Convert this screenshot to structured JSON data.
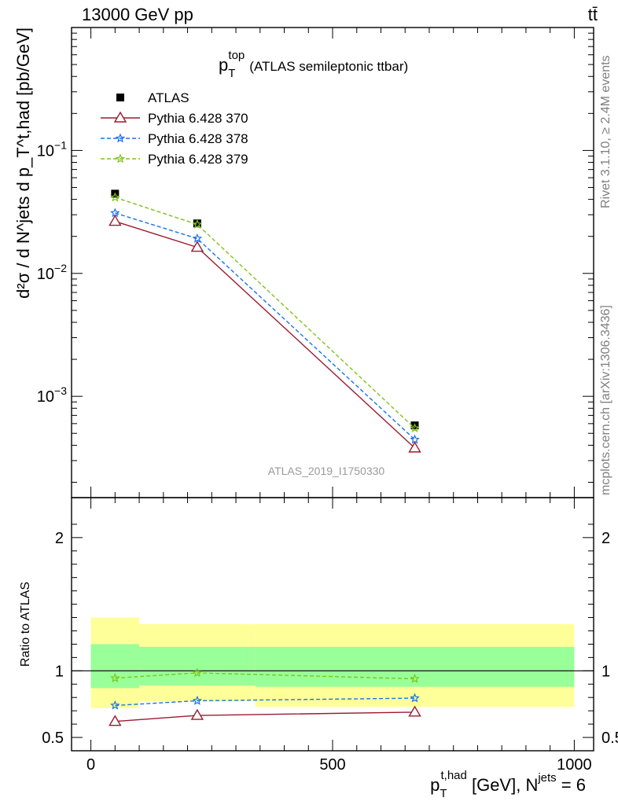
{
  "header": {
    "left": "13000 GeV pp",
    "right": "tt̄"
  },
  "side": {
    "rivet": "Rivet 3.1.10, ≥ 2.4M events",
    "mcplots": "mcplots.cern.ch [arXiv:1306.3436]"
  },
  "chart_data": [
    {
      "type": "line",
      "panel": "main",
      "title_main": "p",
      "title_sub": "T",
      "title_sup": "top",
      "title_rest": "(ATLAS semileptonic ttbar)",
      "analysis_tag": "ATLAS_2019_I1750330",
      "ylabel": "d²σ / d N^jets d p_T^t,had [pb/GeV]",
      "yscale": "log",
      "ylim": [
        0.00015,
        1.0
      ],
      "xlim": [
        -40,
        1040
      ],
      "yticks": [
        {
          "value": 0.1,
          "base": "10",
          "exp": "−1"
        },
        {
          "value": 0.01,
          "base": "10",
          "exp": "−2"
        },
        {
          "value": 0.001,
          "base": "10",
          "exp": "−3"
        }
      ],
      "x": [
        50,
        220,
        670
      ],
      "series": [
        {
          "name": "ATLAS",
          "color": "#000000",
          "marker": "square",
          "line": "none",
          "values": [
            0.0445,
            0.0255,
            0.00058
          ]
        },
        {
          "name": "Pythia 6.428 370",
          "color": "#9b1b30",
          "marker": "triangle",
          "line": "solid",
          "values": [
            0.0265,
            0.0163,
            0.00038
          ]
        },
        {
          "name": "Pythia 6.428 378",
          "color": "#1a73e8",
          "marker": "star",
          "line": "dashed",
          "values": [
            0.031,
            0.0192,
            0.000445
          ]
        },
        {
          "name": "Pythia 6.428 379",
          "color": "#7fc41c",
          "marker": "star",
          "line": "dashed",
          "values": [
            0.0415,
            0.025,
            0.00055
          ]
        }
      ]
    },
    {
      "type": "line",
      "panel": "ratio",
      "ylabel": "Ratio to ATLAS",
      "xlabel_main": "p",
      "xlabel_sub": "T",
      "xlabel_sup": "t,had",
      "xlabel_mid": "[GeV], N",
      "xlabel_sup2": "jets",
      "xlabel_end": "= 6",
      "ylim": [
        0.4,
        2.3
      ],
      "xlim": [
        -40,
        1040
      ],
      "yticks": [
        0.5,
        1,
        2
      ],
      "xticks": [
        0,
        500,
        1000
      ],
      "bands": [
        {
          "x0": 0,
          "x1": 100,
          "yellow": [
            0.72,
            1.4
          ],
          "green": [
            0.87,
            1.2
          ]
        },
        {
          "x0": 100,
          "x1": 340,
          "yellow": [
            0.77,
            1.35
          ],
          "green": [
            0.89,
            1.18
          ]
        },
        {
          "x0": 340,
          "x1": 1000,
          "yellow": [
            0.73,
            1.35
          ],
          "green": [
            0.88,
            1.18
          ]
        }
      ],
      "band_colors": {
        "yellow": "#ffff99",
        "green": "#99ff99"
      },
      "x": [
        50,
        220,
        670
      ],
      "series": [
        {
          "name": "Pythia 6.428 370",
          "color": "#9b1b30",
          "marker": "triangle",
          "line": "solid",
          "values": [
            0.62,
            0.665,
            0.69
          ]
        },
        {
          "name": "Pythia 6.428 378",
          "color": "#1a73e8",
          "marker": "star",
          "line": "dashed",
          "values": [
            0.74,
            0.775,
            0.795
          ]
        },
        {
          "name": "Pythia 6.428 379",
          "color": "#7fc41c",
          "marker": "star",
          "line": "dashed",
          "values": [
            0.945,
            0.985,
            0.94
          ]
        }
      ]
    }
  ]
}
